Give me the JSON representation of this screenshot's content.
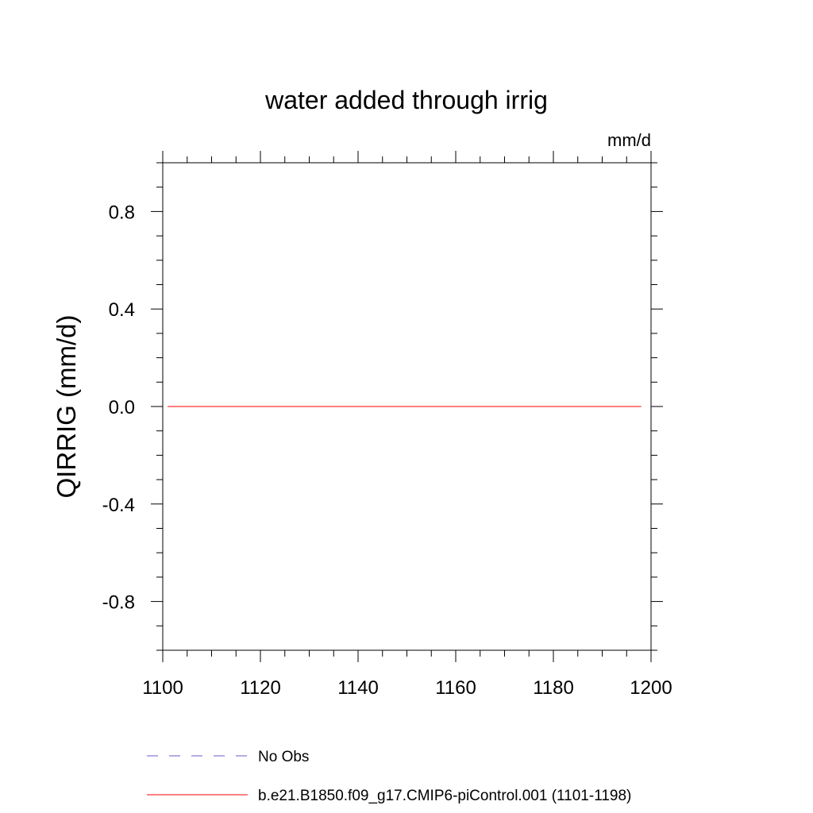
{
  "chart_data": {
    "type": "line",
    "title": "water added through irrig",
    "units_label": "mm/d",
    "xlabel": "",
    "ylabel": "QIRRIG  (mm/d)",
    "xlim": [
      1100,
      1200
    ],
    "ylim": [
      -1,
      1
    ],
    "x_ticks": [
      1100,
      1120,
      1140,
      1160,
      1180,
      1200
    ],
    "x_tick_labels": [
      "1100",
      "1120",
      "1140",
      "1160",
      "1180",
      "1200"
    ],
    "y_ticks": [
      -0.8,
      -0.4,
      0.0,
      0.4,
      0.8
    ],
    "y_tick_labels": [
      "-0.8",
      "-0.4",
      "0.0",
      "0.4",
      "0.8"
    ],
    "grid": false,
    "legend_position": "bottom",
    "series": [
      {
        "name": "No Obs",
        "color": "#6a5acd",
        "style": "dashed",
        "x": [],
        "values": []
      },
      {
        "name": "b.e21.B1850.f09_g17.CMIP6-piControl.001 (1101-1198)",
        "color": "#ff0000",
        "style": "solid",
        "x": [
          1101,
          1198
        ],
        "values": [
          0,
          0
        ]
      }
    ]
  }
}
